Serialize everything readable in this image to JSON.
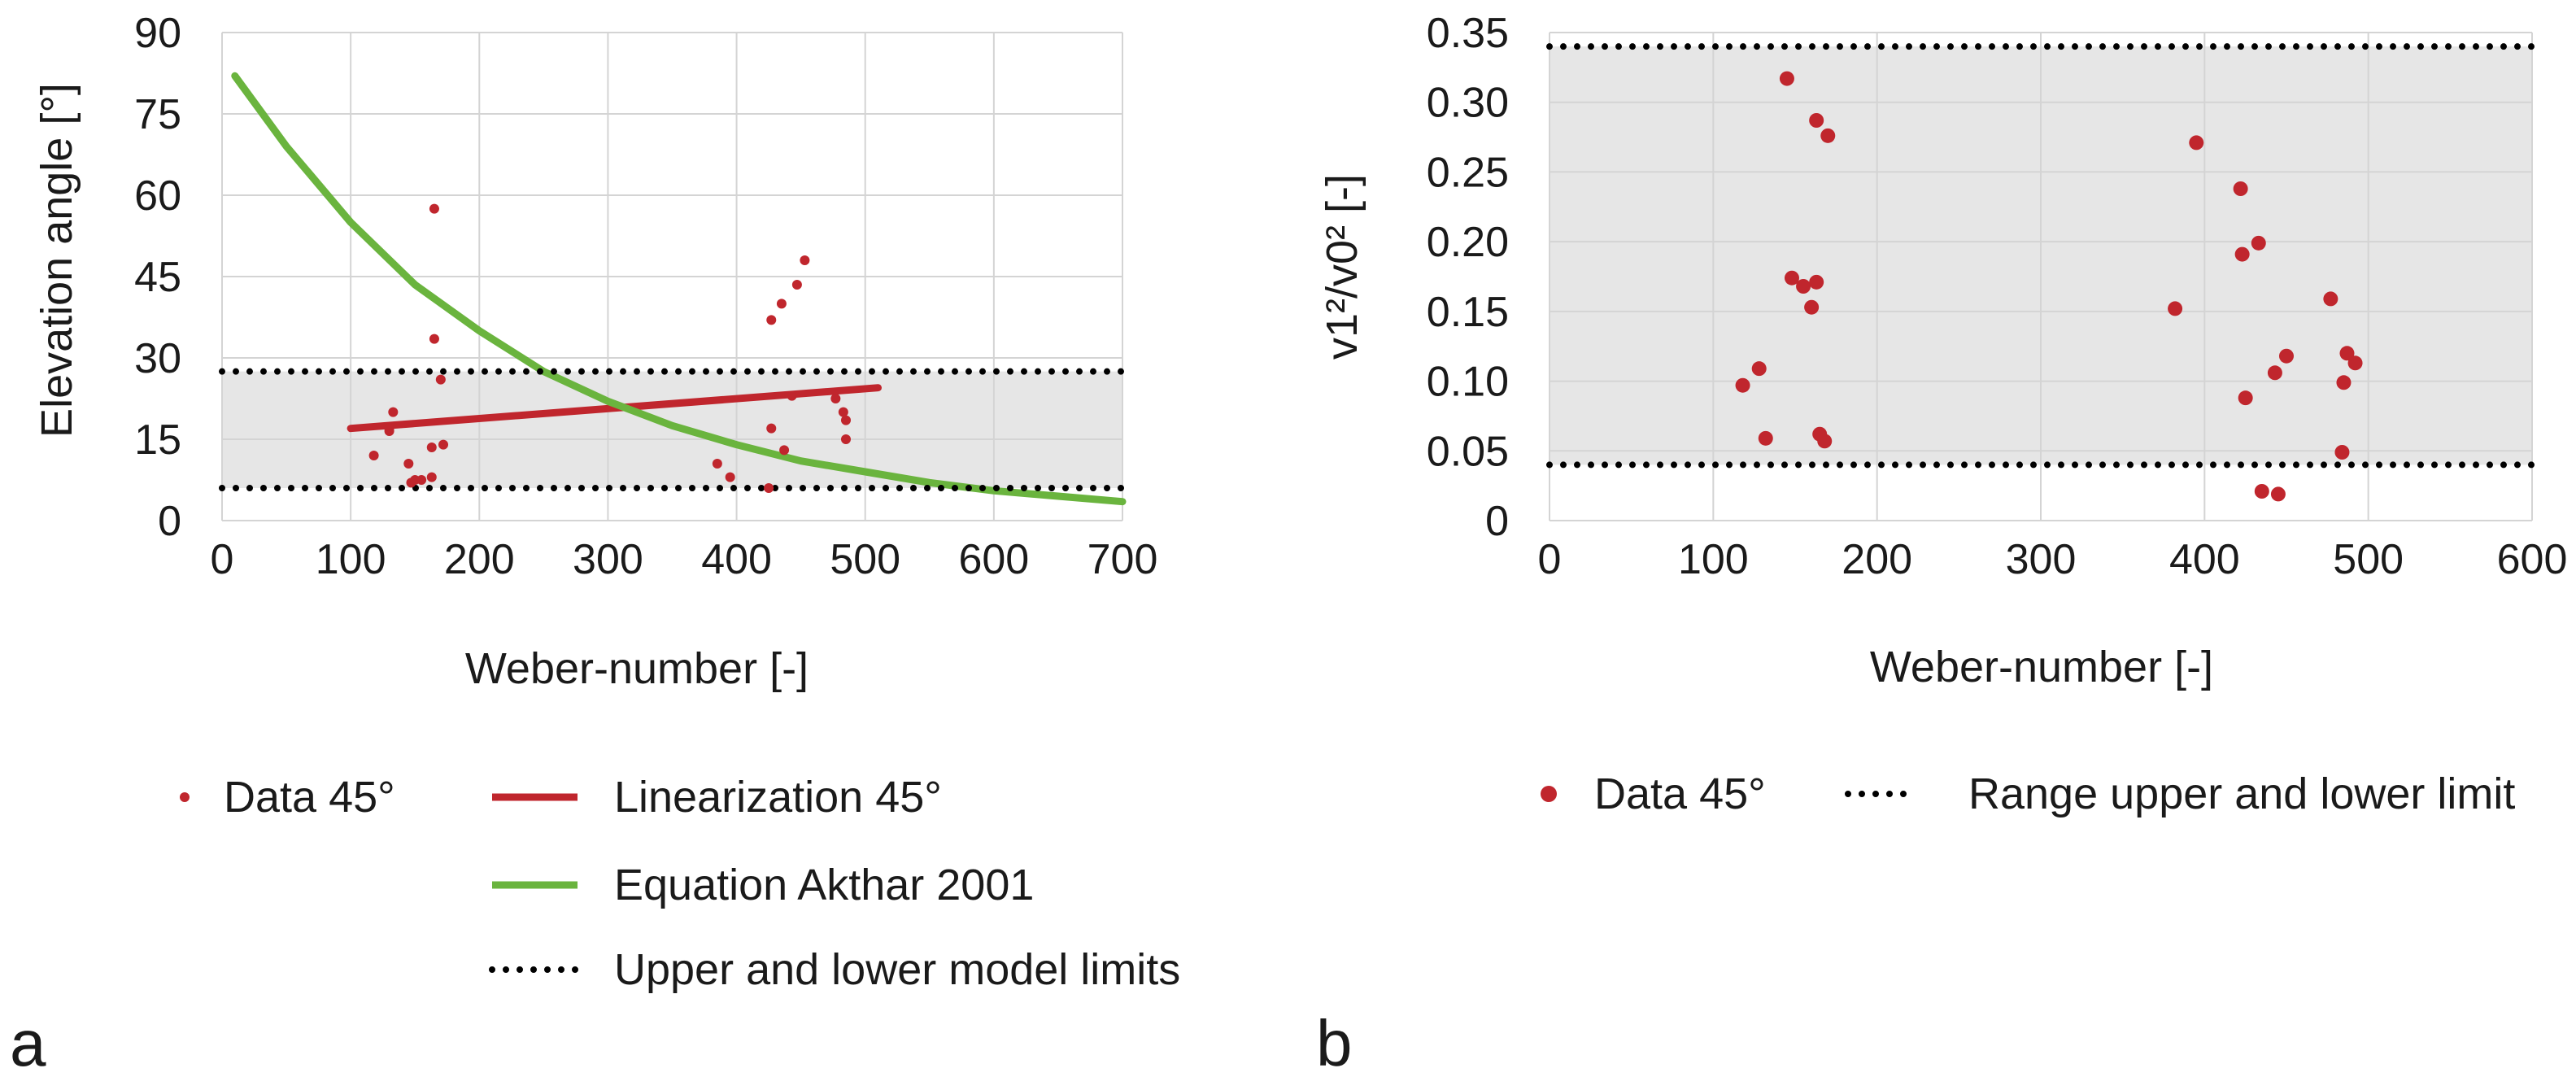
{
  "panels": {
    "a": {
      "label": "a",
      "legend": {
        "data": "Data 45°",
        "linearization": "Linearization 45°",
        "equation": "Equation Akthar 2001",
        "limits": "Upper and lower model limits"
      },
      "colors": {
        "data": "#c0262d",
        "linearization": "#c0262d",
        "equation": "#6ab43e",
        "limits": "#000000",
        "band": "#e6e6e6"
      }
    },
    "b": {
      "label": "b",
      "legend": {
        "data": "Data 45°",
        "limits": "Range upper and lower limit"
      },
      "colors": {
        "data": "#c0262d",
        "limits": "#000000",
        "band": "#e6e6e6"
      }
    }
  },
  "chart_data": [
    {
      "type": "scatter",
      "title": "",
      "xlabel": "Weber-number [-]",
      "ylabel": "Elevation angle [°]",
      "xlim": [
        0,
        700
      ],
      "ylim": [
        0,
        90
      ],
      "xticks": [
        0,
        100,
        200,
        300,
        400,
        500,
        600,
        700
      ],
      "yticks": [
        0,
        15,
        30,
        45,
        60,
        75,
        90
      ],
      "grid": true,
      "band": {
        "lower": 6,
        "upper": 27.5
      },
      "series": [
        {
          "name": "Data 45°",
          "kind": "scatter",
          "x": [
            118,
            130,
            130,
            133,
            145,
            147,
            150,
            155,
            163,
            163,
            165,
            170,
            172,
            165,
            385,
            395,
            425,
            427,
            427,
            435,
            437,
            443,
            447,
            453,
            477,
            483,
            485,
            485
          ],
          "y": [
            12,
            16.5,
            17,
            20,
            10.5,
            7,
            7.5,
            7.5,
            8,
            13.5,
            57.5,
            26,
            14,
            33.5,
            10.5,
            8,
            6,
            17,
            37,
            40,
            13,
            23,
            43.5,
            48,
            22.5,
            20,
            18.5,
            15
          ]
        },
        {
          "name": "Linearization 45°",
          "kind": "line",
          "x": [
            100,
            510
          ],
          "y": [
            17,
            24.5
          ]
        },
        {
          "name": "Equation Akthar 2001",
          "kind": "line",
          "x": [
            10,
            50,
            100,
            150,
            200,
            250,
            300,
            350,
            400,
            450,
            500,
            550,
            600,
            650,
            700
          ],
          "y": [
            82,
            69,
            55,
            43.5,
            35,
            27.5,
            22,
            17.5,
            14,
            11,
            9,
            7,
            5.5,
            4.5,
            3.5
          ]
        },
        {
          "name": "Upper and lower model limits",
          "kind": "limits",
          "values": [
            27.5,
            6
          ]
        }
      ]
    },
    {
      "type": "scatter",
      "title": "",
      "xlabel": "Weber-number [-]",
      "ylabel": "v1²/v0² [-]",
      "xlim": [
        0,
        600
      ],
      "ylim": [
        0,
        0.35
      ],
      "xticks": [
        0,
        100,
        200,
        300,
        400,
        500,
        600
      ],
      "yticks": [
        "0",
        "0.05",
        "0.10",
        "0.15",
        "0.20",
        "0.25",
        "0.30",
        "0.35"
      ],
      "grid": true,
      "band": {
        "lower": 0.04,
        "upper": 0.34
      },
      "series": [
        {
          "name": "Data 45°",
          "kind": "scatter",
          "x": [
            118,
            128,
            132,
            145,
            148,
            155,
            160,
            163,
            163,
            165,
            168,
            170,
            382,
            395,
            422,
            423,
            425,
            433,
            435,
            443,
            445,
            450,
            477,
            484,
            485,
            487,
            492
          ],
          "y": [
            0.097,
            0.109,
            0.059,
            0.317,
            0.174,
            0.168,
            0.153,
            0.171,
            0.287,
            0.062,
            0.057,
            0.276,
            0.152,
            0.271,
            0.238,
            0.191,
            0.088,
            0.199,
            0.021,
            0.106,
            0.019,
            0.118,
            0.159,
            0.049,
            0.099,
            0.12,
            0.113
          ]
        },
        {
          "name": "Range upper and lower limit",
          "kind": "limits",
          "values": [
            0.34,
            0.04
          ]
        }
      ]
    }
  ]
}
